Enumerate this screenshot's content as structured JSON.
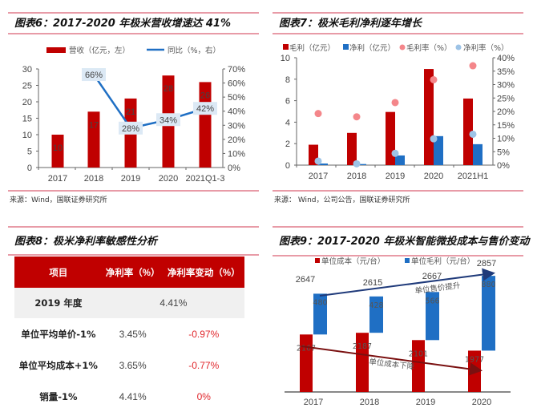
{
  "colors": {
    "red": "#c00000",
    "blue": "#1f6fc4",
    "pink": "#f4868a",
    "lightblue": "#9dc3e6",
    "rule": "#e07a8a",
    "label_box": "#dce9f5"
  },
  "chart_data": [
    {
      "type": "bar",
      "title": "图表6：2017-2020 年极米营收增速达 41%",
      "categories": [
        "2017",
        "2018",
        "2019",
        "2020",
        "2021Q1-3"
      ],
      "series": [
        {
          "name": "营收（亿元，左）",
          "kind": "bar",
          "axis": "left",
          "values": [
            10,
            17,
            21,
            28,
            26
          ],
          "labels": [
            "10",
            "17",
            "21",
            "28",
            "26"
          ]
        },
        {
          "name": "同比（%，右）",
          "kind": "line",
          "axis": "right",
          "values": [
            null,
            66,
            28,
            34,
            42
          ],
          "labels": [
            null,
            "66%",
            "28%",
            "34%",
            "42%"
          ]
        }
      ],
      "ylim": [
        0,
        30
      ],
      "y2lim": [
        0,
        70
      ],
      "yticks": [
        "0",
        "5",
        "10",
        "15",
        "20",
        "25",
        "30"
      ],
      "y2ticks": [
        "0%",
        "10%",
        "20%",
        "30%",
        "40%",
        "50%",
        "60%",
        "70%"
      ],
      "legend": "top",
      "source": "来源：Wind，国联证券研究所"
    },
    {
      "type": "bar",
      "title": "图表7：极米毛利净利逐年增长",
      "categories": [
        "2017",
        "2018",
        "2019",
        "2020",
        "2021H1"
      ],
      "series": [
        {
          "name": "毛利（亿元）",
          "kind": "bar",
          "axis": "left",
          "values": [
            1.9,
            3.0,
            4.95,
            8.95,
            6.2
          ]
        },
        {
          "name": "净利（亿元）",
          "kind": "bar",
          "axis": "left",
          "values": [
            0.15,
            0.1,
            0.9,
            2.7,
            1.95
          ]
        },
        {
          "name": "毛利率（%）",
          "kind": "scatter",
          "axis": "right",
          "values": [
            19.2,
            18.0,
            23.3,
            31.8,
            37.0
          ]
        },
        {
          "name": "净利率（%）",
          "kind": "scatter",
          "axis": "right",
          "values": [
            1.5,
            0.5,
            4.4,
            9.8,
            11.5
          ]
        }
      ],
      "ylim": [
        0,
        10
      ],
      "y2lim": [
        0,
        40
      ],
      "yticks": [
        "0",
        "2",
        "4",
        "6",
        "8",
        "10"
      ],
      "y2ticks": [
        "0%",
        "5%",
        "10%",
        "15%",
        "20%",
        "25%",
        "30%",
        "35%",
        "40%"
      ],
      "legend": "top",
      "source": "来源： Wind，公司公告，国联证券研究所"
    },
    {
      "type": "table",
      "title": "图表8：极米净利率敏感性分析",
      "columns": [
        "项目",
        "净利率（%）",
        "净利率变动（%）"
      ],
      "base_row": {
        "label": "2019 年度",
        "value": "4.41%"
      },
      "rows": [
        {
          "label": "单位平均单价-1%",
          "value": "3.45%",
          "change": "-0.97%"
        },
        {
          "label": "单位平均成本+1%",
          "value": "3.65%",
          "change": "-0.77%"
        },
        {
          "label": "销量-1%",
          "value": "4.41%",
          "change": "0%"
        }
      ]
    },
    {
      "type": "bar",
      "title": "图表9：2017-2020 年极米智能微投成本与售价变动",
      "categories": [
        "2017",
        "2018",
        "2019",
        "2020"
      ],
      "series": [
        {
          "name": "单位成本（元/台）",
          "kind": "stacked-bar",
          "values": [
            2167,
            2187,
            2101,
            1977
          ],
          "labels": [
            "2167",
            "2187",
            "2101",
            "1977"
          ]
        },
        {
          "name": "单位毛利（元/台）",
          "kind": "stacked-bar",
          "values": [
            480,
            428,
            566,
            880
          ],
          "labels": [
            "480",
            "428",
            "566",
            "880"
          ]
        }
      ],
      "totals": [
        "2647",
        "2615",
        "2667",
        "2857"
      ],
      "ylim": [
        1490,
        2900
      ],
      "annotations": [
        "单位售价提升",
        "单位成本下降"
      ],
      "legend": "top"
    }
  ]
}
